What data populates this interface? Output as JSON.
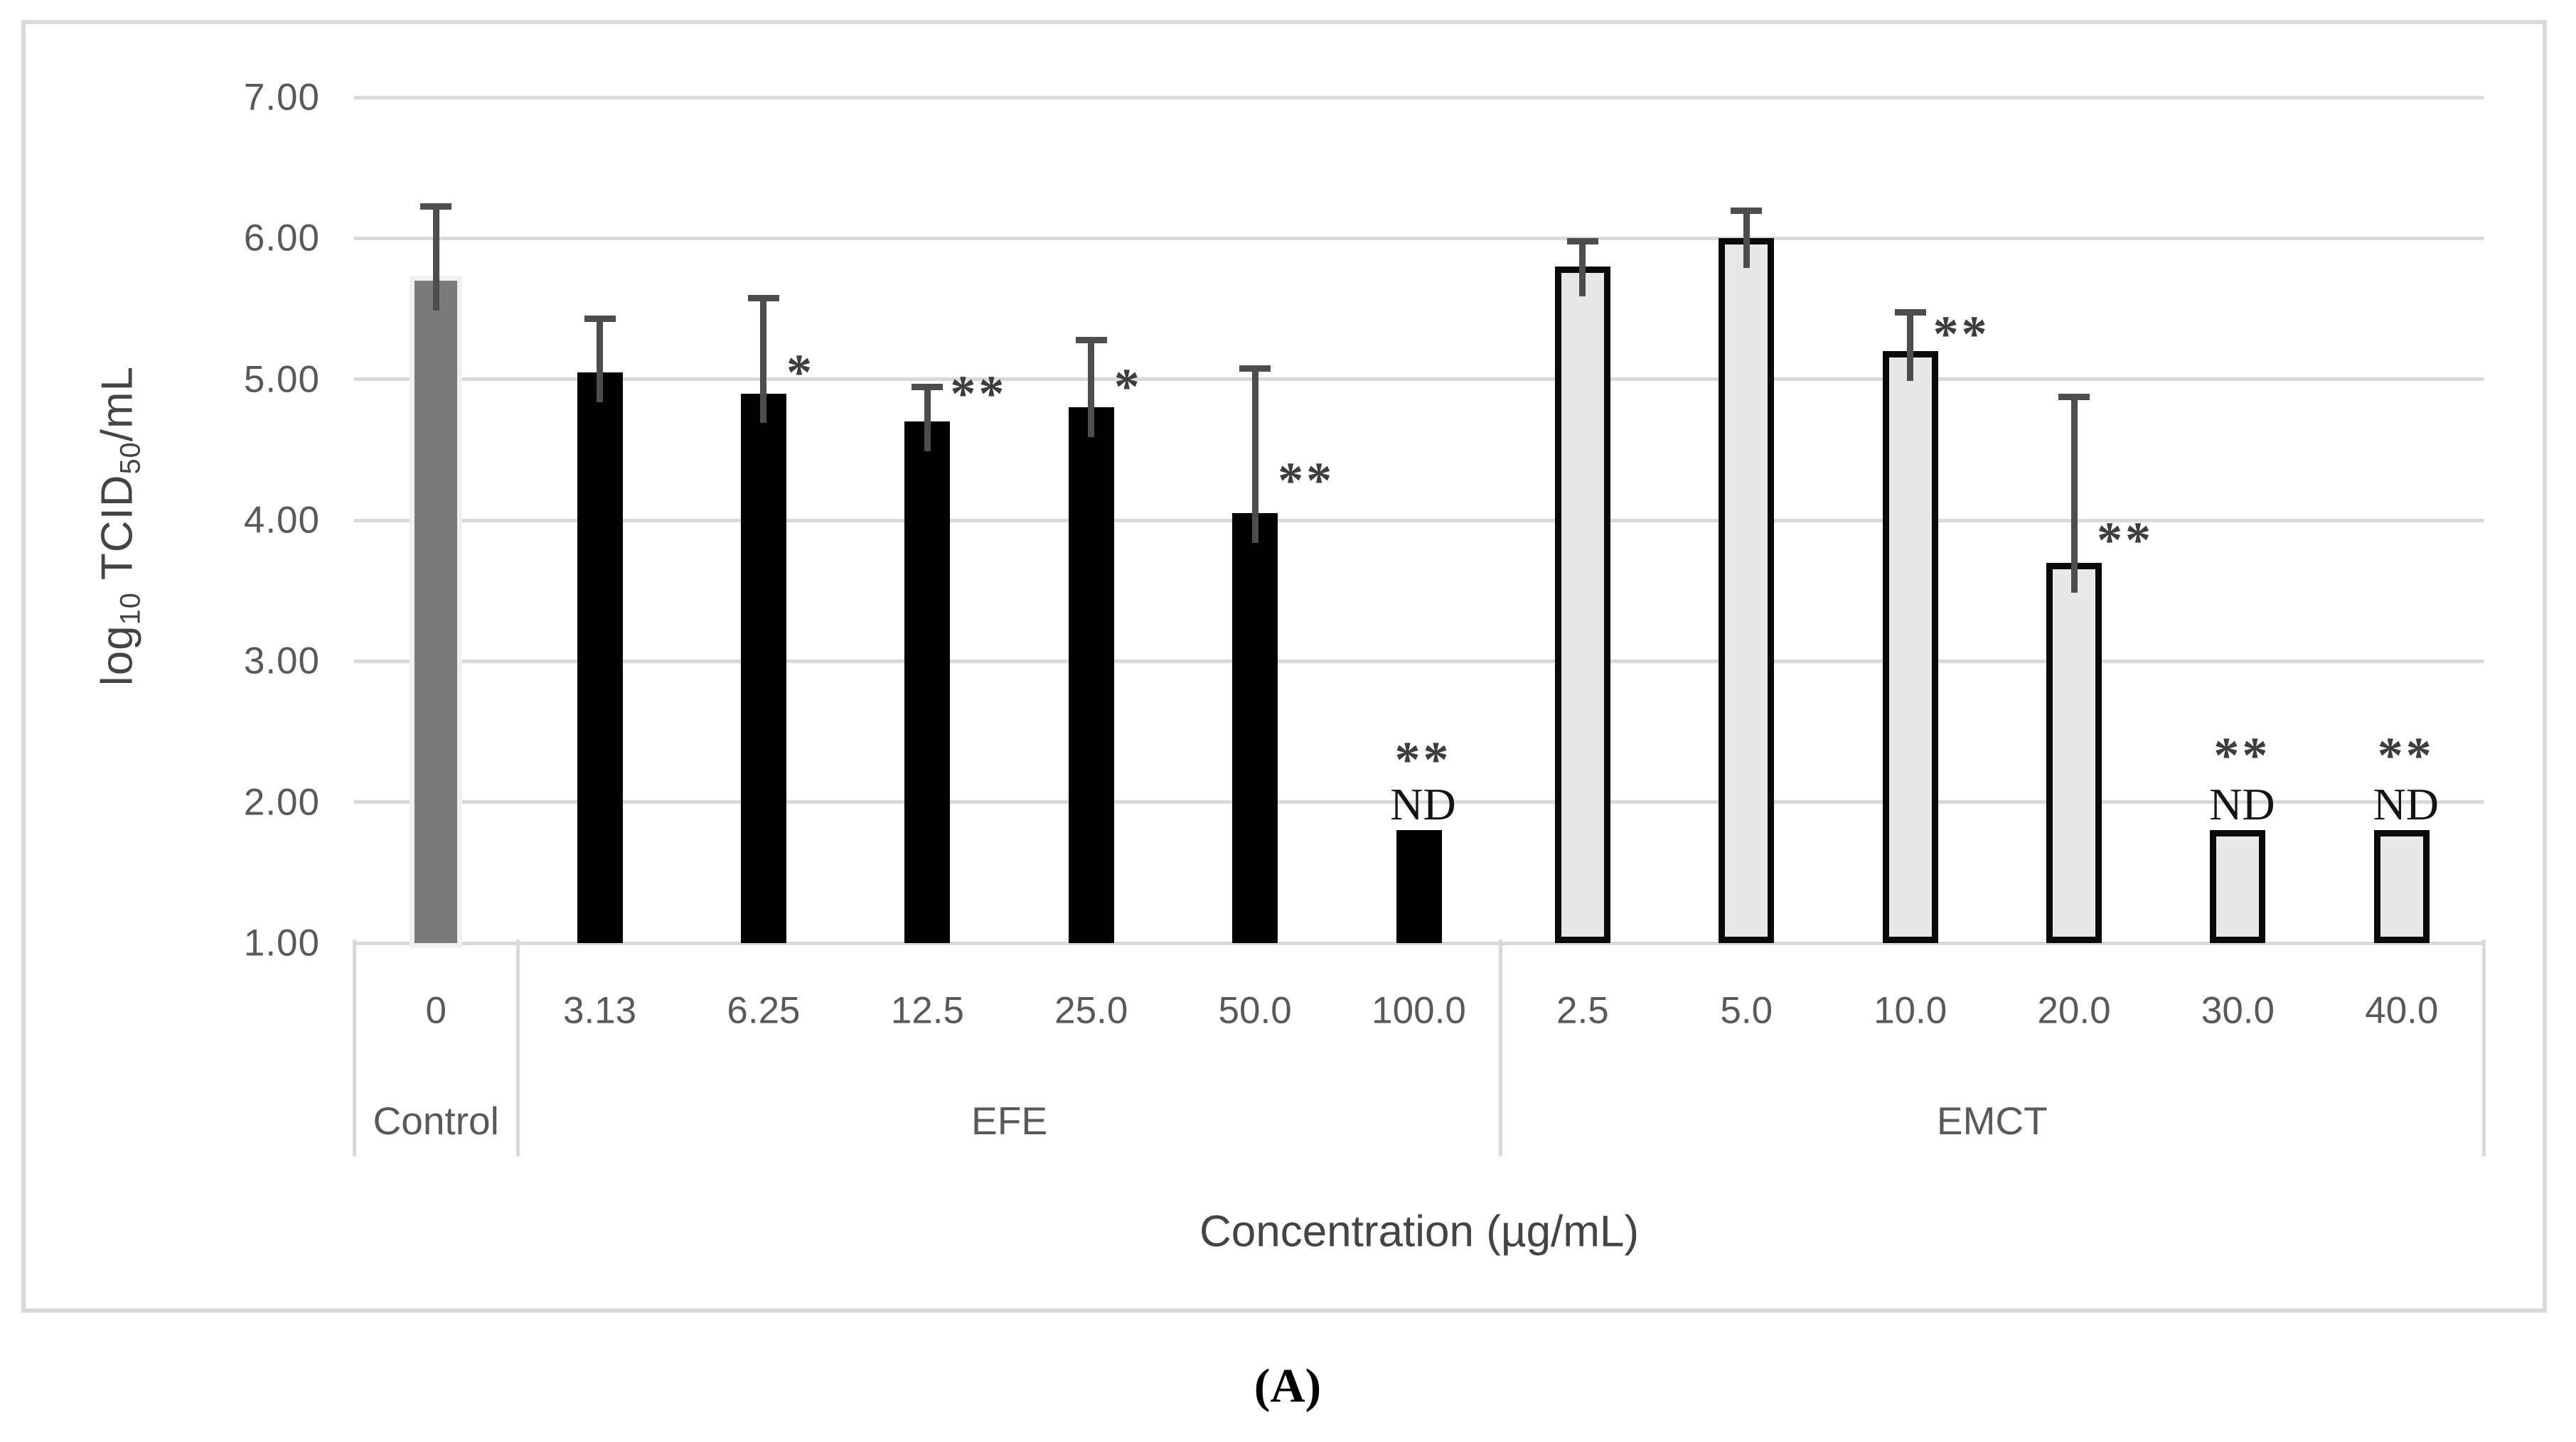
{
  "caption": "(A)",
  "annotations": {
    "nd_label": "ND",
    "single_star": "*",
    "double_star": "**"
  },
  "colors": {
    "control_bar": "#7a7a7a",
    "efe_bar": "#000000",
    "emct_bar_fill": "#e8e8e8",
    "emct_bar_stroke": "#0a0a0a",
    "error_bar": "#4d4d4d",
    "gridline": "#d9d9d9",
    "frame_border": "#d9d9d9",
    "axis_text": "#595959"
  },
  "chart_data": {
    "type": "bar",
    "title": "",
    "xlabel": "Concentration (µg/mL)",
    "ylabel": "log10 TCID50/mL",
    "ylabel_parts": [
      "log",
      "10",
      " TCID",
      "50",
      "/mL"
    ],
    "ylim": [
      1.0,
      7.0
    ],
    "yticks": [
      "7.00",
      "6.00",
      "5.00",
      "4.00",
      "3.00",
      "2.00",
      "1.00"
    ],
    "ytick_values": [
      7.0,
      6.0,
      5.0,
      4.0,
      3.0,
      2.0,
      1.0
    ],
    "grid": true,
    "legend": "none",
    "groups": [
      {
        "name": "Control",
        "span": 1
      },
      {
        "name": "EFE",
        "span": 6
      },
      {
        "name": "EMCT",
        "span": 6
      }
    ],
    "categories": [
      {
        "label": "0",
        "group": "Control",
        "value": 5.7,
        "error_top": 6.25,
        "stars": "",
        "stars_v": null,
        "nd": false
      },
      {
        "label": "3.13",
        "group": "EFE",
        "value": 5.05,
        "error_top": 5.45,
        "stars": "",
        "stars_v": null,
        "nd": false
      },
      {
        "label": "6.25",
        "group": "EFE",
        "value": 4.9,
        "error_top": 5.6,
        "stars": "*",
        "stars_v": 5.05,
        "nd": false
      },
      {
        "label": "12.5",
        "group": "EFE",
        "value": 4.7,
        "error_top": 4.97,
        "stars": "**",
        "stars_v": 4.9,
        "nd": false
      },
      {
        "label": "25.0",
        "group": "EFE",
        "value": 4.8,
        "error_top": 5.3,
        "stars": "*",
        "stars_v": 4.95,
        "nd": false
      },
      {
        "label": "50.0",
        "group": "EFE",
        "value": 4.05,
        "error_top": 5.1,
        "stars": "**",
        "stars_v": 4.28,
        "nd": false
      },
      {
        "label": "100.0",
        "group": "EFE",
        "value": 1.8,
        "error_top": null,
        "stars": "**",
        "stars_v": 2.3,
        "nd": true
      },
      {
        "label": "2.5",
        "group": "EMCT",
        "value": 5.8,
        "error_top": 6.0,
        "stars": "",
        "stars_v": null,
        "nd": false
      },
      {
        "label": "5.0",
        "group": "EMCT",
        "value": 6.0,
        "error_top": 6.22,
        "stars": "",
        "stars_v": null,
        "nd": false
      },
      {
        "label": "10.0",
        "group": "EMCT",
        "value": 5.2,
        "error_top": 5.5,
        "stars": "**",
        "stars_v": 5.32,
        "nd": false
      },
      {
        "label": "20.0",
        "group": "EMCT",
        "value": 3.7,
        "error_top": 4.9,
        "stars": "**",
        "stars_v": 3.86,
        "nd": false
      },
      {
        "label": "30.0",
        "group": "EMCT",
        "value": 1.8,
        "error_top": null,
        "stars": "**",
        "stars_v": 2.33,
        "nd": true
      },
      {
        "label": "40.0",
        "group": "EMCT",
        "value": 1.8,
        "error_top": null,
        "stars": "**",
        "stars_v": 2.33,
        "nd": true
      }
    ]
  }
}
